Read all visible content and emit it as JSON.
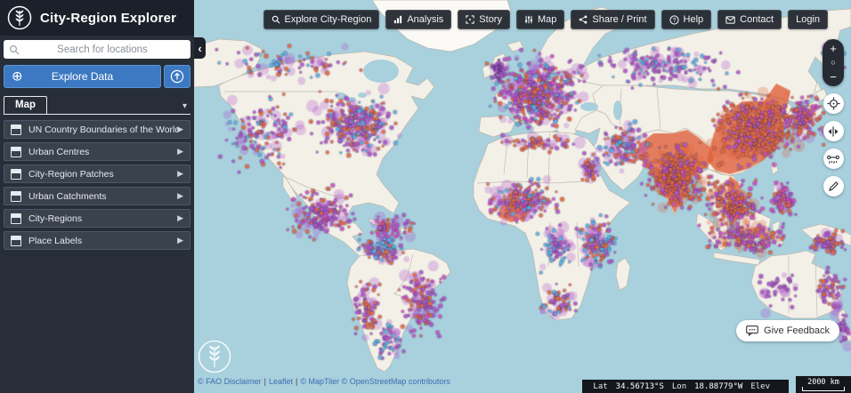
{
  "app": {
    "title": "City-Region Explorer"
  },
  "sidebar": {
    "search": {
      "placeholder": "Search for locations"
    },
    "explore_button": {
      "label": "Explore Data"
    },
    "tabs": {
      "map": "Map"
    },
    "layers": [
      {
        "label": "UN Country Boundaries of the World"
      },
      {
        "label": "Urban Centres"
      },
      {
        "label": "City-Region Patches"
      },
      {
        "label": "Urban Catchments"
      },
      {
        "label": "City-Regions"
      },
      {
        "label": "Place Labels"
      }
    ]
  },
  "topnav": [
    {
      "label": "Explore City-Region",
      "icon": "search-icon"
    },
    {
      "label": "Analysis",
      "icon": "bar-chart-icon"
    },
    {
      "label": "Story",
      "icon": "frame-icon"
    },
    {
      "label": "Map",
      "icon": "sliders-icon"
    },
    {
      "label": "Share / Print",
      "icon": "share-icon"
    },
    {
      "label": "Help",
      "icon": "help-icon"
    },
    {
      "label": "Contact",
      "icon": "contact-icon"
    },
    {
      "label": "Login",
      "icon": "none"
    }
  ],
  "map_controls": {
    "zoom_in": "+",
    "zoom_reset": "○",
    "zoom_out": "−"
  },
  "feedback": {
    "label": "Give Feedback"
  },
  "statusbar": {
    "lat_label": "Lat",
    "lat_value": "34.56713°S",
    "lon_label": "Lon",
    "lon_value": "18.88779°W",
    "elev_label": "Elev",
    "elev_value": ""
  },
  "scalebar": {
    "label": "2000 km"
  },
  "attribution": {
    "items": [
      "© FAO Disclaimer",
      "Leaflet",
      "© MapTiler © OpenStreetMap contributors"
    ]
  },
  "colors": {
    "accent_blue": "#3d79c2",
    "ocean": "#a8d0dd",
    "land": "#f3f0e8",
    "dot_purple": "#b158ce",
    "dot_orange": "#e8693f",
    "dot_blue": "#55b4e8",
    "dot_magenta": "#d44fc6"
  }
}
